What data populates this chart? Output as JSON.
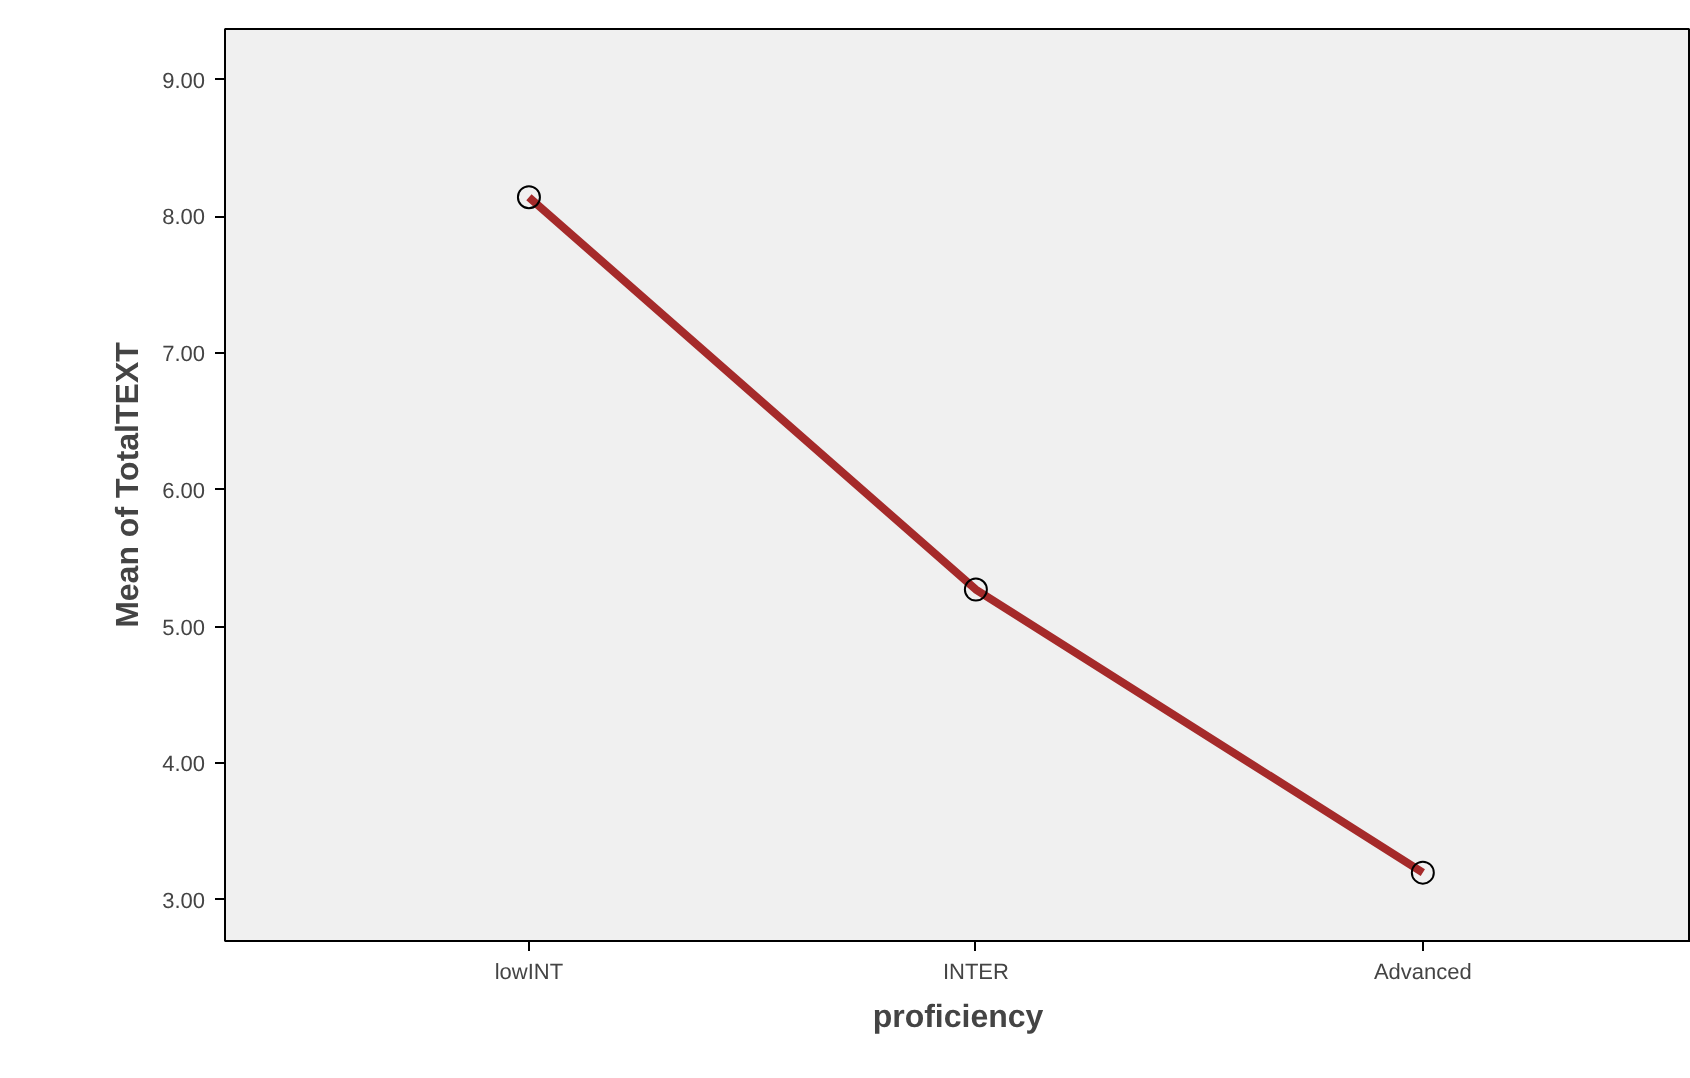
{
  "chart_data": {
    "type": "line",
    "xlabel": "proficiency",
    "ylabel": "Mean of TotalTEXT",
    "categories": [
      "lowINT",
      "INTER",
      "Advanced"
    ],
    "series": [
      {
        "color": "#a52a2a",
        "values": [
          8.14,
          5.27,
          3.2
        ]
      }
    ],
    "ylim": [
      2.7,
      9.37
    ],
    "yticks": [
      {
        "value": 3,
        "label": "3.00"
      },
      {
        "value": 4,
        "label": "4.00"
      },
      {
        "value": 5,
        "label": "5.00"
      },
      {
        "value": 6,
        "label": "6.00"
      },
      {
        "value": 7,
        "label": "7.00"
      },
      {
        "value": 8,
        "label": "8.00"
      },
      {
        "value": 9,
        "label": "9.00"
      }
    ],
    "grid": false,
    "marker": "circle",
    "line_style": "solid"
  }
}
